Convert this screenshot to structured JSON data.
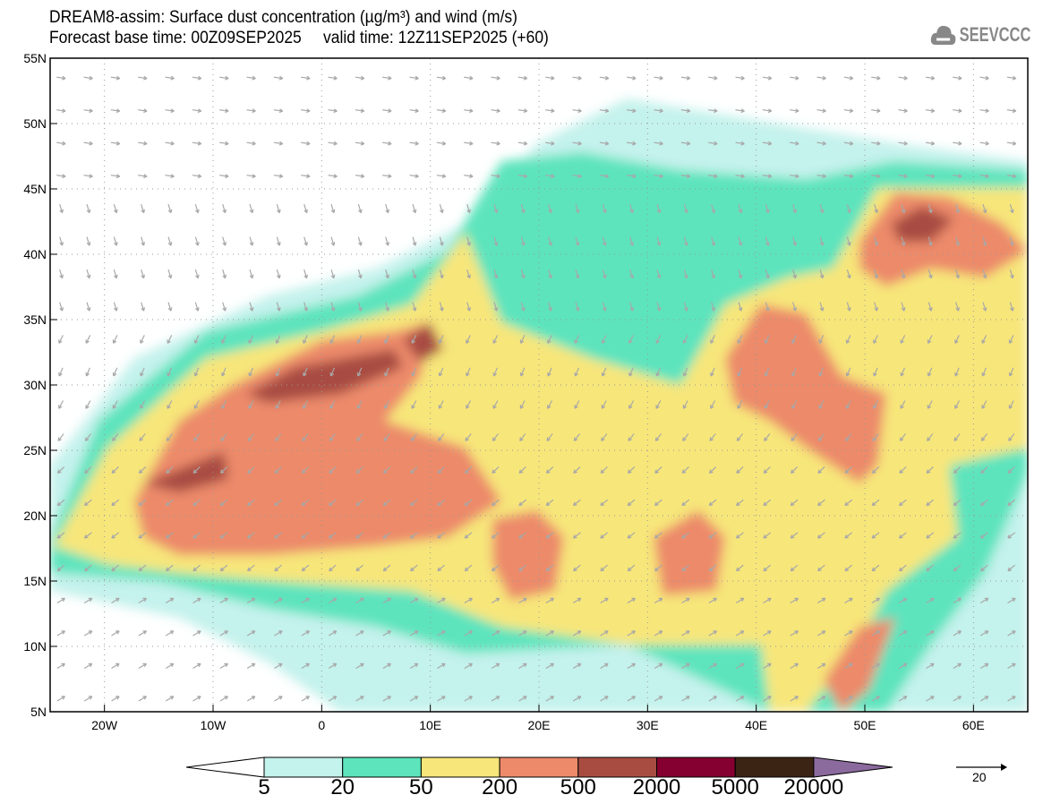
{
  "title": {
    "line1": "DREAM8-assim: Surface dust concentration (µg/m³) and wind (m/s)",
    "line2": "Forecast base time: 00Z09SEP2025     valid time: 12Z11SEP2025 (+60)"
  },
  "logo": {
    "text": "SEEVCCC",
    "icon": "cloud-icon"
  },
  "map": {
    "lat_ticks": [
      "55N",
      "50N",
      "45N",
      "40N",
      "35N",
      "30N",
      "25N",
      "20N",
      "15N",
      "10N",
      "5N"
    ],
    "lon_ticks": [
      "20W",
      "10W",
      "0",
      "10E",
      "20E",
      "30E",
      "40E",
      "50E",
      "60E"
    ],
    "lon_range": [
      -25,
      65
    ],
    "lat_range": [
      5,
      55
    ]
  },
  "colorbar": {
    "levels": [
      "5",
      "20",
      "50",
      "200",
      "500",
      "2000",
      "5000",
      "20000"
    ],
    "colors": [
      "#ffffff",
      "#c4f2ec",
      "#5de4bd",
      "#f7e67a",
      "#ec8a6a",
      "#a84c42",
      "#850030",
      "#3c2414",
      "#8b6a9e"
    ]
  },
  "wind_reference": {
    "value": "20",
    "icon": "arrow-right-icon"
  }
}
